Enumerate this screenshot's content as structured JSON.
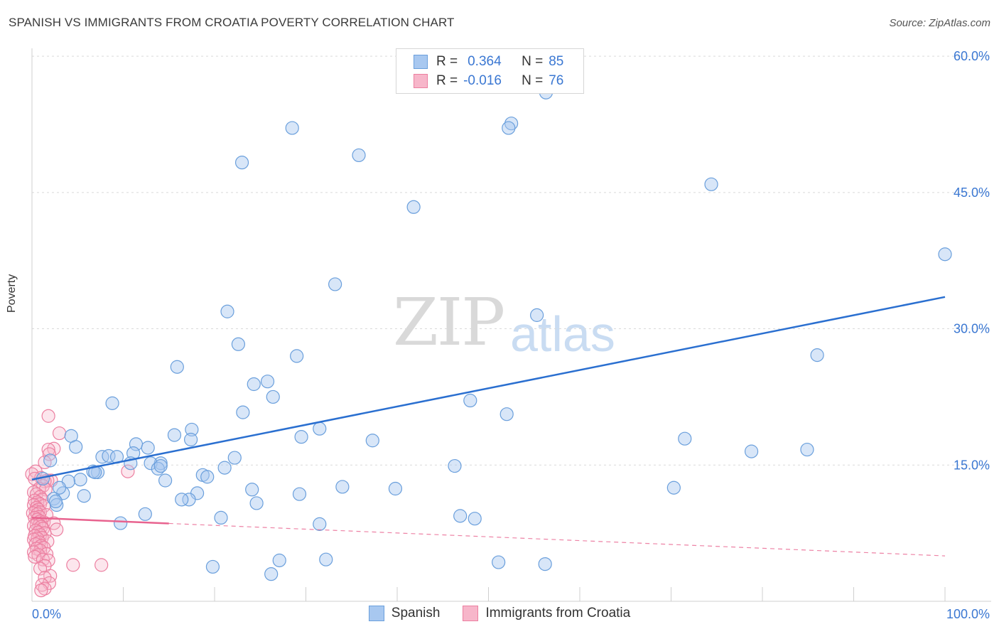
{
  "header": {
    "title": "SPANISH VS IMMIGRANTS FROM CROATIA POVERTY CORRELATION CHART",
    "source": "Source: ZipAtlas.com"
  },
  "watermark": {
    "zip": "ZIP",
    "atlas": "atlas"
  },
  "legend": {
    "spanish": {
      "r_label": "R =",
      "r_value": "0.364",
      "n_label": "N =",
      "n_value": "85"
    },
    "croatia": {
      "r_label": "R =",
      "r_value": "-0.016",
      "n_label": "N =",
      "n_value": "76"
    }
  },
  "bottom_legend": {
    "spanish": "Spanish",
    "croatia": "Immigrants from Croatia"
  },
  "colors": {
    "spanish_fill": "#a8c8f0",
    "spanish_stroke": "#6a9fdc",
    "spanish_line": "#2a6fd0",
    "croatia_fill": "#f7b6ca",
    "croatia_stroke": "#ec7fa0",
    "croatia_line": "#e8638f",
    "axis_label": "#3a77d2",
    "grid": "#d9d9d9"
  },
  "chart_data": {
    "type": "scatter",
    "title": "SPANISH VS IMMIGRANTS FROM CROATIA POVERTY CORRELATION CHART",
    "xlabel": "",
    "ylabel": "Poverty",
    "xlim": [
      0,
      100
    ],
    "ylim": [
      0,
      63
    ],
    "x_tick_labels": [
      "0.0%",
      "100.0%"
    ],
    "y_ticks": [
      15,
      30,
      45,
      60
    ],
    "y_tick_labels": [
      "15.0%",
      "30.0%",
      "45.0%",
      "60.0%"
    ],
    "grid": true,
    "series": [
      {
        "name": "Spanish",
        "r": 0.364,
        "n": 85,
        "trend": {
          "x": [
            0,
            100
          ],
          "y": [
            13.4,
            33.5
          ],
          "solid_until": 100
        },
        "points": [
          [
            56.3,
            56.0
          ],
          [
            52.5,
            52.6
          ],
          [
            52.2,
            52.1
          ],
          [
            28.5,
            52.1
          ],
          [
            35.8,
            49.1
          ],
          [
            23.0,
            48.3
          ],
          [
            74.4,
            45.9
          ],
          [
            41.8,
            43.4
          ],
          [
            100,
            38.2
          ],
          [
            33.2,
            34.9
          ],
          [
            21.4,
            31.9
          ],
          [
            55.3,
            31.5
          ],
          [
            22.6,
            28.3
          ],
          [
            29.0,
            27.0
          ],
          [
            86.0,
            27.1
          ],
          [
            15.9,
            25.8
          ],
          [
            24.3,
            23.9
          ],
          [
            25.8,
            24.2
          ],
          [
            26.4,
            22.5
          ],
          [
            8.8,
            21.8
          ],
          [
            48.0,
            22.1
          ],
          [
            52.0,
            20.6
          ],
          [
            23.1,
            20.8
          ],
          [
            11.4,
            17.3
          ],
          [
            17.5,
            18.9
          ],
          [
            15.6,
            18.3
          ],
          [
            17.4,
            17.8
          ],
          [
            31.5,
            19.0
          ],
          [
            29.5,
            18.1
          ],
          [
            37.3,
            17.7
          ],
          [
            71.5,
            17.9
          ],
          [
            4.3,
            18.2
          ],
          [
            4.8,
            17.0
          ],
          [
            7.7,
            15.9
          ],
          [
            8.4,
            16.0
          ],
          [
            9.3,
            15.9
          ],
          [
            12.7,
            16.9
          ],
          [
            11.1,
            16.3
          ],
          [
            14.1,
            15.2
          ],
          [
            13.0,
            15.2
          ],
          [
            10.8,
            15.2
          ],
          [
            13.8,
            14.6
          ],
          [
            14.1,
            14.9
          ],
          [
            21.1,
            14.7
          ],
          [
            22.2,
            15.8
          ],
          [
            7.2,
            14.2
          ],
          [
            6.7,
            14.3
          ],
          [
            6.9,
            14.2
          ],
          [
            5.3,
            13.4
          ],
          [
            4.0,
            13.2
          ],
          [
            1.2,
            13.5
          ],
          [
            14.6,
            13.3
          ],
          [
            18.7,
            13.9
          ],
          [
            19.2,
            13.7
          ],
          [
            46.3,
            14.9
          ],
          [
            78.8,
            16.5
          ],
          [
            84.9,
            16.7
          ],
          [
            3.4,
            11.9
          ],
          [
            5.7,
            11.6
          ],
          [
            2.4,
            11.3
          ],
          [
            2.7,
            10.6
          ],
          [
            2.6,
            11.0
          ],
          [
            18.1,
            11.9
          ],
          [
            17.2,
            11.2
          ],
          [
            16.4,
            11.2
          ],
          [
            24.1,
            12.3
          ],
          [
            34.0,
            12.6
          ],
          [
            39.8,
            12.4
          ],
          [
            29.3,
            11.8
          ],
          [
            24.6,
            10.8
          ],
          [
            70.3,
            12.5
          ],
          [
            12.4,
            9.6
          ],
          [
            20.7,
            9.2
          ],
          [
            46.9,
            9.4
          ],
          [
            48.5,
            9.1
          ],
          [
            9.7,
            8.6
          ],
          [
            31.5,
            8.5
          ],
          [
            19.8,
            3.8
          ],
          [
            26.2,
            3.0
          ],
          [
            27.1,
            4.5
          ],
          [
            32.2,
            4.6
          ],
          [
            51.1,
            4.3
          ],
          [
            56.2,
            4.1
          ],
          [
            2.0,
            15.5
          ],
          [
            3.0,
            12.5
          ]
        ]
      },
      {
        "name": "Immigrants from Croatia",
        "r": -0.016,
        "n": 76,
        "trend": {
          "x": [
            0,
            100
          ],
          "y": [
            9.2,
            5.0
          ],
          "solid_until": 15
        },
        "points": [
          [
            1.8,
            20.4
          ],
          [
            3.0,
            18.5
          ],
          [
            2.4,
            16.8
          ],
          [
            1.8,
            16.7
          ],
          [
            1.9,
            16.2
          ],
          [
            1.4,
            15.3
          ],
          [
            0.4,
            14.3
          ],
          [
            0.0,
            14.0
          ],
          [
            10.5,
            14.3
          ],
          [
            1.0,
            13.6
          ],
          [
            0.3,
            13.5
          ],
          [
            2.1,
            13.3
          ],
          [
            1.7,
            13.3
          ],
          [
            1.4,
            13.2
          ],
          [
            1.2,
            12.7
          ],
          [
            0.8,
            12.4
          ],
          [
            1.5,
            12.3
          ],
          [
            0.2,
            12.0
          ],
          [
            0.5,
            11.8
          ],
          [
            0.9,
            11.5
          ],
          [
            1.1,
            11.2
          ],
          [
            0.3,
            11.1
          ],
          [
            0.6,
            10.9
          ],
          [
            0.9,
            10.7
          ],
          [
            0.2,
            10.6
          ],
          [
            1.3,
            10.5
          ],
          [
            0.5,
            10.3
          ],
          [
            0.7,
            10.1
          ],
          [
            0.4,
            9.9
          ],
          [
            0.9,
            9.8
          ],
          [
            0.1,
            9.7
          ],
          [
            0.6,
            9.6
          ],
          [
            1.6,
            9.5
          ],
          [
            0.8,
            9.3
          ],
          [
            0.3,
            9.2
          ],
          [
            0.6,
            9.0
          ],
          [
            0.9,
            8.8
          ],
          [
            1.3,
            8.7
          ],
          [
            2.4,
            8.6
          ],
          [
            0.5,
            8.5
          ],
          [
            0.8,
            8.4
          ],
          [
            0.2,
            8.3
          ],
          [
            1.0,
            8.2
          ],
          [
            1.2,
            8.0
          ],
          [
            2.7,
            7.9
          ],
          [
            0.4,
            7.8
          ],
          [
            0.7,
            7.6
          ],
          [
            1.4,
            7.5
          ],
          [
            0.9,
            7.3
          ],
          [
            0.3,
            7.2
          ],
          [
            1.1,
            7.0
          ],
          [
            0.6,
            6.9
          ],
          [
            0.2,
            6.8
          ],
          [
            1.7,
            6.6
          ],
          [
            0.8,
            6.5
          ],
          [
            0.4,
            6.3
          ],
          [
            1.0,
            6.1
          ],
          [
            1.3,
            5.9
          ],
          [
            0.5,
            5.8
          ],
          [
            0.9,
            5.6
          ],
          [
            0.2,
            5.4
          ],
          [
            1.6,
            5.2
          ],
          [
            0.7,
            5.1
          ],
          [
            0.3,
            4.9
          ],
          [
            1.2,
            4.6
          ],
          [
            1.8,
            4.5
          ],
          [
            4.5,
            4.0
          ],
          [
            7.6,
            4.0
          ],
          [
            1.4,
            3.9
          ],
          [
            0.9,
            3.6
          ],
          [
            2.0,
            2.8
          ],
          [
            1.4,
            2.6
          ],
          [
            1.9,
            2.0
          ],
          [
            1.1,
            1.8
          ],
          [
            1.4,
            1.4
          ],
          [
            1.0,
            1.2
          ]
        ]
      }
    ]
  }
}
